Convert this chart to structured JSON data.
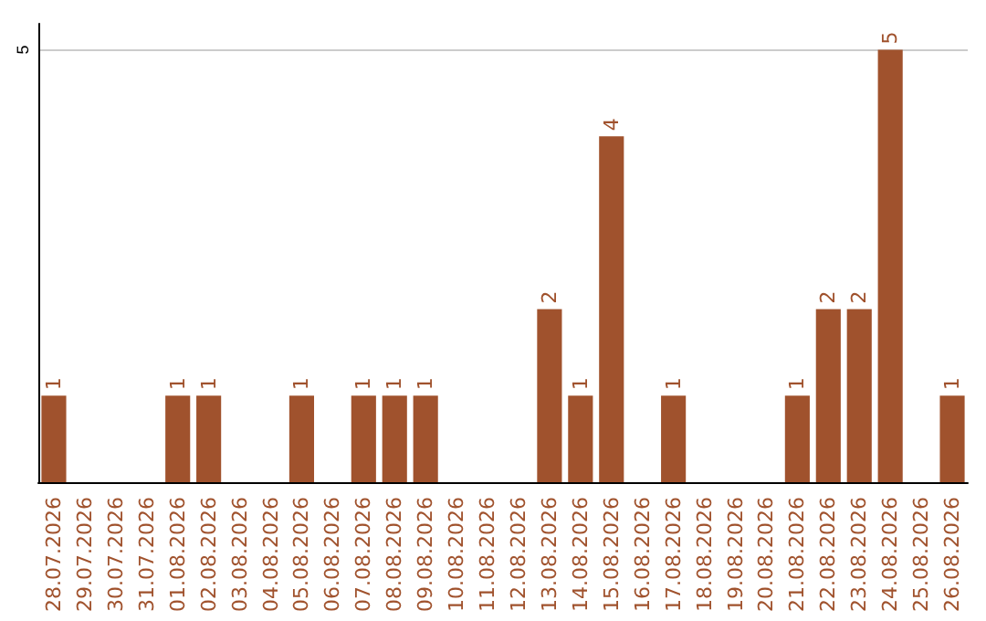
{
  "chart_data": {
    "type": "bar",
    "categories": [
      "28.07.2026",
      "29.07.2026",
      "30.07.2026",
      "31.07.2026",
      "01.08.2026",
      "02.08.2026",
      "03.08.2026",
      "04.08.2026",
      "05.08.2026",
      "06.08.2026",
      "07.08.2026",
      "08.08.2026",
      "09.08.2026",
      "10.08.2026",
      "11.08.2026",
      "12.08.2026",
      "13.08.2026",
      "14.08.2026",
      "15.08.2026",
      "16.08.2026",
      "17.08.2026",
      "18.08.2026",
      "19.08.2026",
      "20.08.2026",
      "21.08.2026",
      "22.08.2026",
      "23.08.2026",
      "24.08.2026",
      "25.08.2026",
      "26.08.2026"
    ],
    "values": [
      1,
      null,
      null,
      null,
      1,
      1,
      null,
      null,
      1,
      null,
      1,
      1,
      1,
      null,
      null,
      null,
      2,
      1,
      4,
      null,
      1,
      null,
      null,
      null,
      1,
      2,
      2,
      5,
      null,
      1
    ],
    "color": "#a0522d",
    "ylim": [
      0,
      5.3
    ],
    "yticks": [
      5
    ],
    "grid": "y",
    "data_labels": true
  }
}
